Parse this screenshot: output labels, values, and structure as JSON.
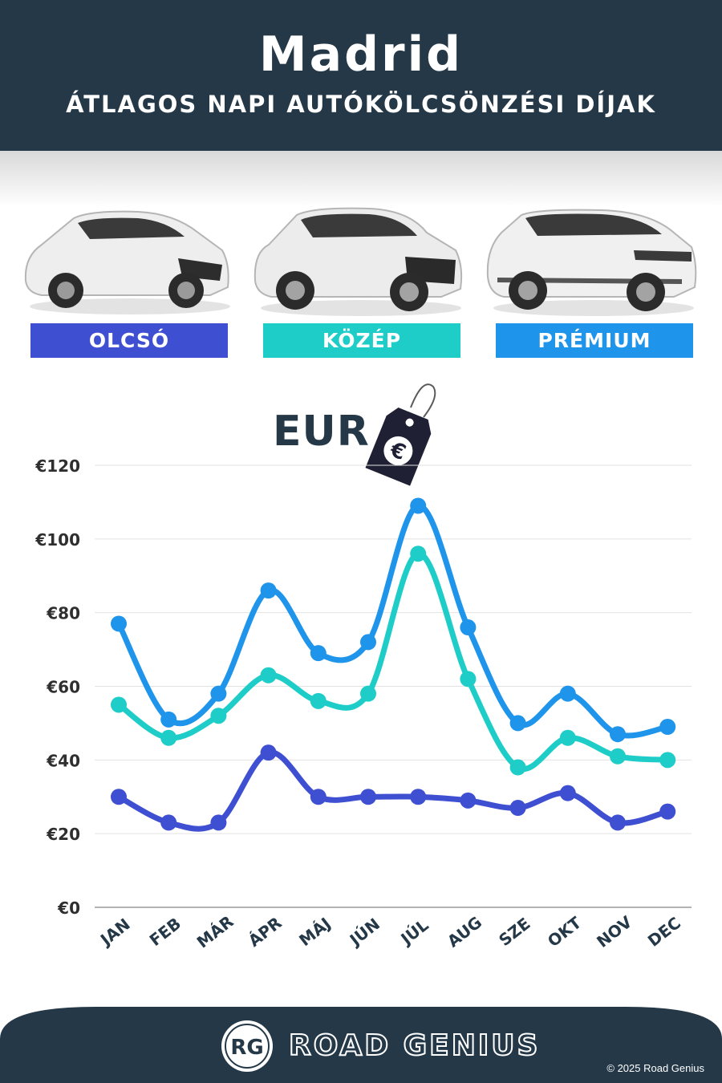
{
  "header": {
    "title": "Madrid",
    "subtitle": "ÁTLAGOS NAPI AUTÓKÖLCSÖNZÉSI DÍJAK"
  },
  "categories": [
    {
      "label": "OLCSÓ",
      "color": "#3f4fd1",
      "icon": "hatchback-car-icon"
    },
    {
      "label": "KÖZÉP",
      "color": "#1ecdc8",
      "icon": "suv-car-icon"
    },
    {
      "label": "PRÉMIUM",
      "color": "#1e94ea",
      "icon": "luxury-suv-icon"
    }
  ],
  "currency": {
    "label": "EUR",
    "symbol": "€",
    "icon": "price-tag-icon"
  },
  "chart_data": {
    "type": "line",
    "categories": [
      "JAN",
      "FEB",
      "MÁR",
      "ÁPR",
      "MÁJ",
      "JÚN",
      "JÚL",
      "AUG",
      "SZE",
      "OKT",
      "NOV",
      "DEC"
    ],
    "series": [
      {
        "name": "PRÉMIUM",
        "color": "#1e94ea",
        "values": [
          77,
          51,
          58,
          86,
          69,
          72,
          109,
          76,
          50,
          58,
          47,
          49
        ]
      },
      {
        "name": "KÖZÉP",
        "color": "#1ecdc8",
        "values": [
          55,
          46,
          52,
          63,
          56,
          58,
          96,
          62,
          38,
          46,
          41,
          40
        ]
      },
      {
        "name": "OLCSÓ",
        "color": "#3f4fd1",
        "values": [
          30,
          23,
          23,
          42,
          30,
          30,
          30,
          29,
          27,
          31,
          23,
          26
        ]
      }
    ],
    "yticks": [
      "€0",
      "€20",
      "€40",
      "€60",
      "€80",
      "€100",
      "€120"
    ],
    "ylim": [
      0,
      120
    ],
    "grid": true
  },
  "footer": {
    "logo": "RG",
    "brand": "ROAD GENIUS",
    "copyright": "© 2025 Road Genius"
  },
  "colors": {
    "navy": "#243848"
  }
}
